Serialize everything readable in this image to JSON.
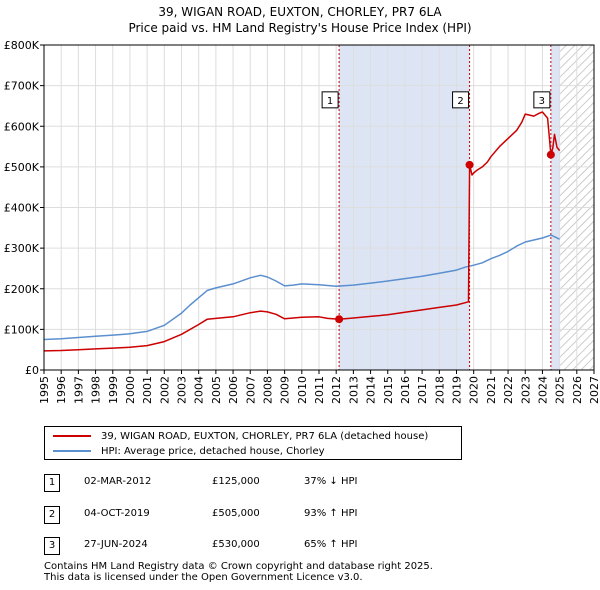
{
  "title_line1": "39, WIGAN ROAD, EUXTON, CHORLEY, PR7 6LA",
  "title_line2": "Price paid vs. HM Land Registry's House Price Index (HPI)",
  "legend": {
    "property": "39, WIGAN ROAD, EUXTON, CHORLEY, PR7 6LA (detached house)",
    "hpi": "HPI: Average price, detached house, Chorley"
  },
  "colors": {
    "property": "#cc0000",
    "hpi": "#5b8fcf",
    "shade": "#dde5f5",
    "marker_line": "#cc0000",
    "grid": "#dddddd"
  },
  "sales": [
    {
      "num": "1",
      "date": "02-MAR-2012",
      "price": "£125,000",
      "hpi": "37% ↓ HPI"
    },
    {
      "num": "2",
      "date": "04-OCT-2019",
      "price": "£505,000",
      "hpi": "93% ↑ HPI"
    },
    {
      "num": "3",
      "date": "27-JUN-2024",
      "price": "£530,000",
      "hpi": "65% ↑ HPI"
    }
  ],
  "footer_line1": "Contains HM Land Registry data © Crown copyright and database right 2025.",
  "footer_line2": "This data is licensed under the Open Government Licence v3.0.",
  "chart_data": {
    "type": "line",
    "title": "39, WIGAN ROAD, EUXTON, CHORLEY, PR7 6LA — Price paid vs. HM Land Registry's House Price Index (HPI)",
    "xlabel": "",
    "ylabel": "",
    "xlim": [
      1995,
      2027
    ],
    "ylim": [
      0,
      800000
    ],
    "x_ticks": [
      "1995",
      "1996",
      "1997",
      "1998",
      "1999",
      "2000",
      "2001",
      "2002",
      "2003",
      "2004",
      "2005",
      "2006",
      "2007",
      "2008",
      "2009",
      "2010",
      "2011",
      "2012",
      "2013",
      "2014",
      "2015",
      "2016",
      "2017",
      "2018",
      "2019",
      "2020",
      "2021",
      "2022",
      "2023",
      "2024",
      "2025",
      "2026",
      "2027"
    ],
    "y_ticks": [
      {
        "value": 0,
        "label": "£0"
      },
      {
        "value": 100000,
        "label": "£100K"
      },
      {
        "value": 200000,
        "label": "£200K"
      },
      {
        "value": 300000,
        "label": "£300K"
      },
      {
        "value": 400000,
        "label": "£400K"
      },
      {
        "value": 500000,
        "label": "£500K"
      },
      {
        "value": 600000,
        "label": "£600K"
      },
      {
        "value": 700000,
        "label": "£700K"
      },
      {
        "value": 800000,
        "label": "£800K"
      }
    ],
    "shaded_ranges": [
      [
        2012.17,
        2019.76
      ],
      [
        2024.49,
        2025.0
      ]
    ],
    "hatched_range": [
      2025.0,
      2027.0
    ],
    "sale_markers": [
      {
        "label": "1",
        "x": 2012.17,
        "y": 125000
      },
      {
        "label": "2",
        "x": 2019.76,
        "y": 505000
      },
      {
        "label": "3",
        "x": 2024.49,
        "y": 530000
      }
    ],
    "marker_box_value": 665000,
    "series": [
      {
        "name": "39, WIGAN ROAD, EUXTON, CHORLEY, PR7 6LA (detached house)",
        "x": [
          1995.0,
          1996.0,
          1997.0,
          1998.0,
          1999.0,
          2000.0,
          2001.0,
          2002.0,
          2003.0,
          2004.0,
          2004.5,
          2005.0,
          2006.0,
          2007.0,
          2007.6,
          2008.0,
          2008.5,
          2009.0,
          2009.5,
          2010.0,
          2011.0,
          2011.5,
          2012.17,
          2013.0,
          2014.0,
          2015.0,
          2016.0,
          2017.0,
          2018.0,
          2019.0,
          2019.7,
          2019.76,
          2019.9,
          2020.0,
          2020.2,
          2020.5,
          2020.8,
          2021.0,
          2021.5,
          2022.0,
          2022.5,
          2022.8,
          2023.0,
          2023.5,
          2023.8,
          2024.0,
          2024.3,
          2024.49,
          2024.6,
          2024.7,
          2024.85,
          2025.0
        ],
        "y": [
          47000,
          48000,
          50000,
          52000,
          54000,
          56000,
          60000,
          70000,
          88000,
          112000,
          125000,
          127000,
          131000,
          141000,
          145000,
          143000,
          137000,
          126000,
          128000,
          130000,
          131000,
          127000,
          125000,
          128000,
          132000,
          136000,
          142000,
          148000,
          154000,
          160000,
          168000,
          505000,
          480000,
          485000,
          492000,
          500000,
          512000,
          525000,
          550000,
          570000,
          590000,
          610000,
          630000,
          625000,
          632000,
          635000,
          620000,
          530000,
          545000,
          580000,
          548000,
          540000
        ]
      },
      {
        "name": "HPI: Average price, detached house, Chorley",
        "x": [
          1995.0,
          1996.0,
          1997.0,
          1998.0,
          1999.0,
          2000.0,
          2001.0,
          2002.0,
          2003.0,
          2003.5,
          2004.0,
          2004.5,
          2005.0,
          2006.0,
          2007.0,
          2007.6,
          2008.0,
          2008.5,
          2009.0,
          2009.5,
          2010.0,
          2011.0,
          2012.0,
          2013.0,
          2014.0,
          2015.0,
          2016.0,
          2017.0,
          2018.0,
          2019.0,
          2019.5,
          2020.0,
          2020.5,
          2021.0,
          2021.5,
          2022.0,
          2022.5,
          2023.0,
          2023.5,
          2024.0,
          2024.5,
          2025.0
        ],
        "y": [
          75000,
          77000,
          80000,
          83000,
          86000,
          89000,
          95000,
          110000,
          140000,
          160000,
          178000,
          196000,
          202000,
          212000,
          227000,
          233000,
          229000,
          219000,
          207000,
          209000,
          212000,
          210000,
          206000,
          209000,
          214000,
          219000,
          225000,
          231000,
          238000,
          246000,
          253000,
          258000,
          264000,
          274000,
          282000,
          292000,
          305000,
          315000,
          320000,
          325000,
          332000,
          322000
        ]
      }
    ]
  }
}
